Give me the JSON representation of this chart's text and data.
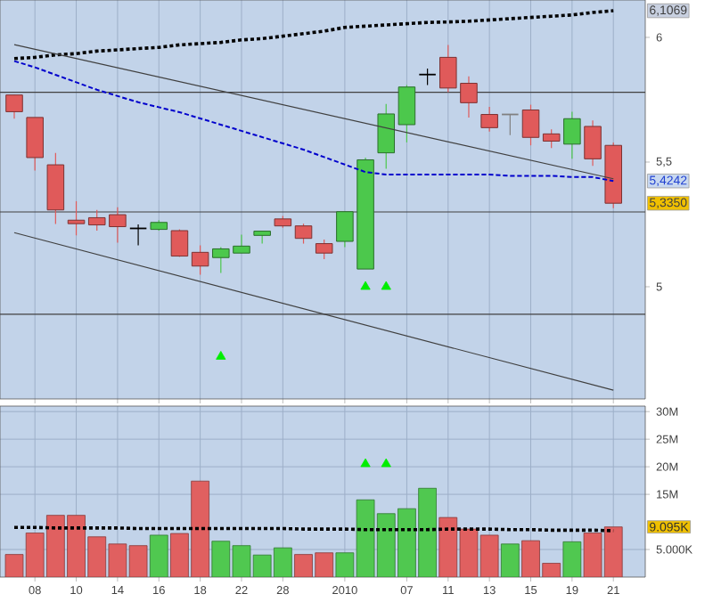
{
  "chart_data": [
    {
      "type": "candlestick",
      "categories": [
        null,
        "08",
        null,
        "10",
        null,
        "14",
        null,
        "16",
        null,
        "18",
        null,
        "22",
        null,
        "28",
        null,
        null,
        "2010",
        null,
        null,
        "07",
        null,
        "11",
        null,
        "13",
        null,
        "15",
        null,
        "19",
        null,
        "21"
      ],
      "ohlc": [
        [
          5.769,
          5.77,
          5.674,
          5.702
        ],
        [
          5.679,
          5.679,
          5.466,
          5.518
        ],
        [
          5.489,
          5.537,
          5.252,
          5.308
        ],
        [
          5.267,
          5.343,
          5.206,
          5.253
        ],
        [
          5.277,
          5.308,
          5.225,
          5.248
        ],
        [
          5.289,
          5.319,
          5.177,
          5.241
        ],
        [
          5.234,
          5.25,
          5.166,
          5.234
        ],
        [
          5.23,
          5.267,
          5.225,
          5.258
        ],
        [
          5.225,
          5.23,
          5.12,
          5.123
        ],
        [
          5.138,
          5.166,
          5.048,
          5.083
        ],
        [
          5.117,
          5.159,
          5.055,
          5.152
        ],
        [
          5.135,
          5.209,
          5.135,
          5.163
        ],
        [
          5.206,
          5.223,
          5.173,
          5.223
        ],
        [
          5.272,
          5.284,
          5.237,
          5.244
        ],
        [
          5.244,
          5.253,
          5.173,
          5.194
        ],
        [
          5.173,
          5.189,
          5.111,
          5.135
        ],
        [
          5.182,
          5.301,
          5.159,
          5.301
        ],
        [
          5.071,
          5.518,
          5.071,
          5.509
        ],
        [
          5.537,
          5.733,
          5.473,
          5.693
        ],
        [
          5.65,
          5.809,
          5.579,
          5.801
        ],
        [
          5.851,
          5.875,
          5.809,
          5.851
        ],
        [
          5.92,
          5.97,
          5.78,
          5.797
        ],
        [
          5.816,
          5.844,
          5.679,
          5.738
        ],
        [
          5.691,
          5.721,
          5.622,
          5.638
        ],
        [
          5.691,
          5.691,
          5.608,
          5.691
        ],
        [
          5.709,
          5.73,
          5.567,
          5.599
        ],
        [
          5.613,
          5.631,
          5.556,
          5.584
        ],
        [
          5.572,
          5.702,
          5.513,
          5.674
        ],
        [
          5.643,
          5.667,
          5.485,
          5.513
        ],
        [
          5.567,
          5.579,
          5.315,
          5.335
        ]
      ],
      "colors": [
        "#e05a5a",
        "#e05a5a",
        "#e05a5a",
        "#e05a5a",
        "#e05a5a",
        "#e05a5a",
        "#000000",
        "#4cc84c",
        "#e05a5a",
        "#e05a5a",
        "#4cc84c",
        "#4cc84c",
        "#4cc84c",
        "#e05a5a",
        "#e05a5a",
        "#e05a5a",
        "#4cc84c",
        "#4cc84c",
        "#4cc84c",
        "#4cc84c",
        "#000000",
        "#e05a5a",
        "#e05a5a",
        "#e05a5a",
        "#808080",
        "#e05a5a",
        "#e05a5a",
        "#4cc84c",
        "#e05a5a",
        "#e05a5a"
      ],
      "series": [
        {
          "type": "line",
          "color": "#000000",
          "line_style": "dotted",
          "values": [
            5.915,
            5.92,
            5.93,
            5.935,
            5.945,
            5.95,
            5.955,
            5.96,
            5.97,
            5.975,
            5.98,
            5.99,
            5.995,
            6.005,
            6.015,
            6.025,
            6.04,
            6.045,
            6.05,
            6.055,
            6.06,
            6.062,
            6.065,
            6.07,
            6.075,
            6.08,
            6.085,
            6.09,
            6.1,
            6.1069
          ]
        },
        {
          "type": "line",
          "color": "#0000cc",
          "line_style": "dashed",
          "values": [
            5.905,
            5.88,
            5.85,
            5.82,
            5.79,
            5.765,
            5.74,
            5.72,
            5.7,
            5.675,
            5.65,
            5.625,
            5.6,
            5.575,
            5.55,
            5.52,
            5.49,
            5.46,
            5.45,
            5.45,
            5.45,
            5.45,
            5.45,
            5.45,
            5.445,
            5.445,
            5.445,
            5.44,
            5.44,
            5.4242
          ]
        },
        {
          "type": "line",
          "color": "#404040",
          "line_style": "solid",
          "values": [
            5.971,
            null,
            null,
            null,
            null,
            null,
            null,
            null,
            null,
            null,
            null,
            null,
            null,
            null,
            null,
            null,
            null,
            null,
            null,
            null,
            null,
            null,
            null,
            null,
            null,
            null,
            null,
            null,
            null,
            5.433
          ]
        },
        {
          "type": "line",
          "color": "#404040",
          "line_style": "solid",
          "values": [
            5.217,
            null,
            null,
            null,
            null,
            null,
            null,
            null,
            null,
            null,
            null,
            null,
            null,
            null,
            null,
            null,
            null,
            null,
            null,
            null,
            null,
            null,
            null,
            null,
            null,
            null,
            null,
            null,
            null,
            4.585
          ]
        },
        {
          "type": "scatter",
          "color": "#00ee00",
          "marker": "triangle",
          "values": [
            null,
            null,
            null,
            null,
            null,
            null,
            null,
            null,
            null,
            null,
            4.72,
            null,
            null,
            null,
            null,
            null,
            null,
            5.0,
            5.0,
            null,
            null,
            null,
            null,
            null,
            null,
            null,
            null,
            null,
            null,
            null
          ]
        }
      ],
      "ylim": [
        4.55,
        6.15
      ],
      "yticks": [
        5,
        {
          "value": 5.5,
          "label": "5,5"
        },
        6
      ],
      "grid": "x",
      "tick_labels": "y",
      "ref_lines": [
        {
          "axis": "y",
          "value": 5.78,
          "color": "#404040"
        },
        {
          "axis": "y",
          "value": 5.3,
          "color": "#404040"
        },
        {
          "axis": "y",
          "value": 4.89,
          "color": "#404040"
        }
      ],
      "annotations": [
        {
          "text": "6,1069",
          "x": "21",
          "y": 6.1069
        },
        {
          "text": "5,4242",
          "x": "21",
          "y": 5.4242
        },
        {
          "text": "5,3350",
          "x": "21",
          "y": 5.335
        }
      ]
    },
    {
      "type": "bar",
      "categories": [
        null,
        "08",
        null,
        "10",
        null,
        "14",
        null,
        "16",
        null,
        "18",
        null,
        "22",
        null,
        "28",
        null,
        null,
        "2010",
        null,
        null,
        "07",
        null,
        "11",
        null,
        "13",
        null,
        "15",
        null,
        "19",
        null,
        "21"
      ],
      "series": [
        {
          "type": "bar",
          "values": [
            4.1,
            8.0,
            11.2,
            11.2,
            7.3,
            6.0,
            5.7,
            7.6,
            7.9,
            17.4,
            6.5,
            5.7,
            4.0,
            5.3,
            4.1,
            4.4,
            4.4,
            14.0,
            11.5,
            12.4,
            16.1,
            10.8,
            8.7,
            7.6,
            6.0,
            6.6,
            2.5,
            6.4,
            8.0,
            9.095
          ],
          "colors": [
            "#e06060",
            "#e06060",
            "#e06060",
            "#e06060",
            "#e06060",
            "#e06060",
            "#e06060",
            "#50c850",
            "#e06060",
            "#e06060",
            "#50c850",
            "#50c850",
            "#50c850",
            "#50c850",
            "#e06060",
            "#e06060",
            "#50c850",
            "#50c850",
            "#50c850",
            "#50c850",
            "#50c850",
            "#e06060",
            "#e06060",
            "#e06060",
            "#50c850",
            "#e06060",
            "#e06060",
            "#50c850",
            "#e06060",
            "#e06060"
          ]
        },
        {
          "type": "line",
          "color": "#000000",
          "line_style": "dotted",
          "values": [
            9.0,
            9.0,
            8.9,
            8.9,
            8.9,
            8.9,
            8.8,
            8.8,
            8.8,
            8.8,
            8.8,
            8.8,
            8.8,
            8.8,
            8.7,
            8.7,
            8.7,
            8.6,
            8.6,
            8.6,
            8.6,
            8.7,
            8.7,
            8.7,
            8.6,
            8.6,
            8.5,
            8.5,
            8.5,
            8.4
          ]
        },
        {
          "type": "scatter",
          "color": "#00ee00",
          "marker": "triangle",
          "values": [
            null,
            null,
            null,
            null,
            null,
            null,
            null,
            null,
            null,
            null,
            null,
            null,
            null,
            null,
            null,
            null,
            null,
            20.5,
            20.5,
            null,
            null,
            null,
            null,
            null,
            null,
            null,
            null,
            null,
            null,
            null
          ]
        }
      ],
      "ylim": [
        0,
        31
      ],
      "yticks": [
        {
          "value": 5,
          "label": "5.000K"
        },
        {
          "value": 15,
          "label": "15M"
        },
        {
          "value": 20,
          "label": "20M"
        },
        {
          "value": 25,
          "label": "25M"
        },
        {
          "value": 30,
          "label": "30M"
        }
      ],
      "grid": true,
      "annotations": [
        {
          "text": "9.095K",
          "x": "21",
          "y": 9.095
        }
      ]
    }
  ]
}
